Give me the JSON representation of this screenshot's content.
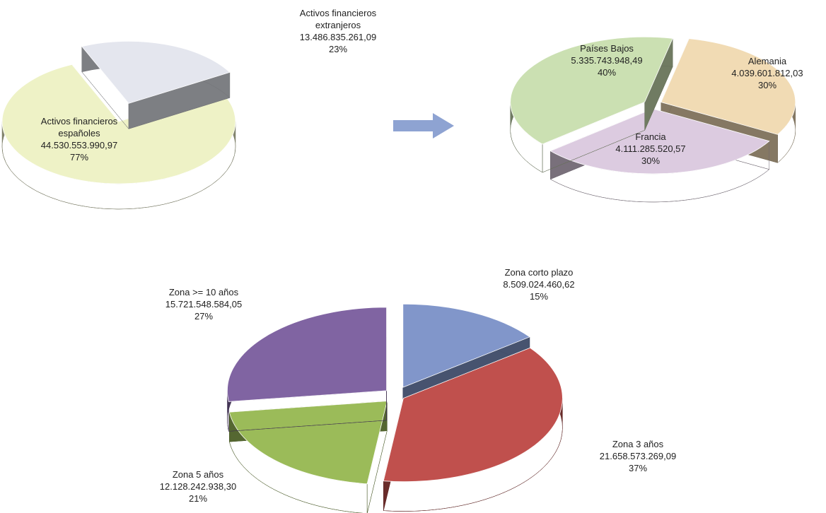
{
  "chart_data": [
    {
      "type": "pie3d",
      "categories": [
        "Activos financieros españoles",
        "Activos financieros extranjeros"
      ],
      "values": [
        44530553990.97,
        13486835261.09
      ],
      "value_labels": [
        "44.530.553.990,97",
        "13.486.835.261,09"
      ],
      "percents": [
        77,
        23
      ],
      "percent_labels": [
        "77%",
        "23%"
      ],
      "colors": [
        "#eef2c6",
        "#e4e6ee"
      ]
    },
    {
      "type": "pie3d",
      "categories": [
        "Alemania",
        "Francia",
        "Países Bajos"
      ],
      "values": [
        4039601812.03,
        4111285520.57,
        5335743948.49
      ],
      "value_labels": [
        "4.039.601.812,03",
        "4.111.285.520,57",
        "5.335.743.948,49"
      ],
      "percents": [
        30,
        30,
        40
      ],
      "percent_labels": [
        "30%",
        "30%",
        "40%"
      ],
      "colors": [
        "#f1dbb4",
        "#dccbe0",
        "#cbe0b2"
      ]
    },
    {
      "type": "pie3d",
      "categories": [
        "Zona corto plazo",
        "Zona 3 años",
        "Zona 5 años",
        "Zona >= 10 años"
      ],
      "values": [
        8509024460.62,
        21658573269.09,
        12128242938.3,
        15721548584.05
      ],
      "value_labels": [
        "8.509.024.460,62",
        "21.658.573.269,09",
        "12.128.242.938,30",
        "15.721.548.584,05"
      ],
      "percents": [
        15,
        37,
        21,
        27
      ],
      "percent_labels": [
        "15%",
        "37%",
        "21%",
        "27%"
      ],
      "colors": [
        "#8196ca",
        "#c0504d",
        "#9bbb59",
        "#8064a2"
      ]
    }
  ]
}
